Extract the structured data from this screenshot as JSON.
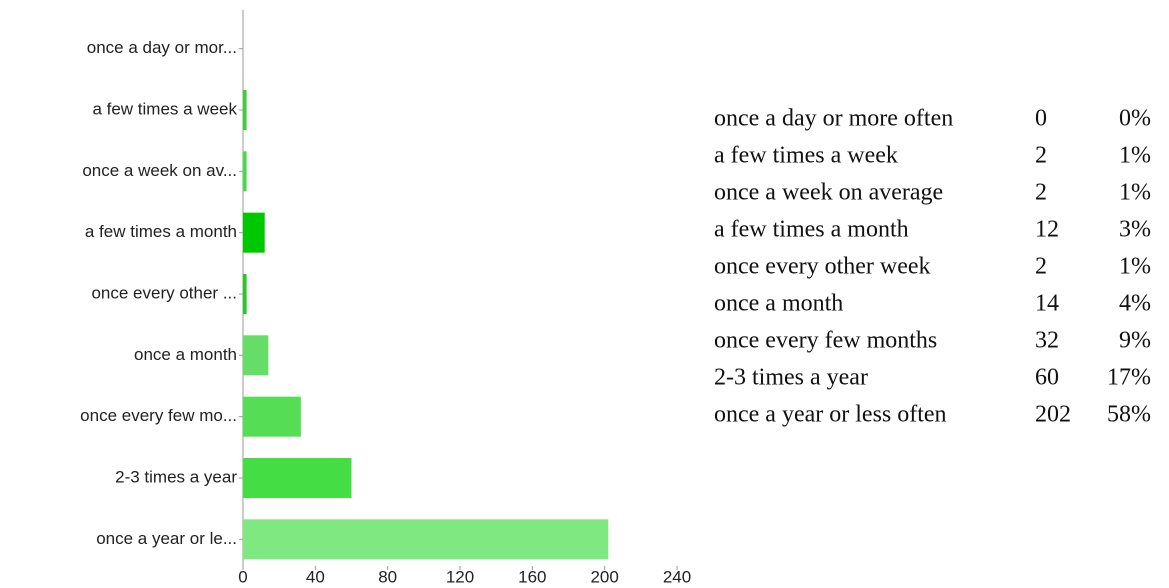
{
  "chart_data": {
    "type": "bar",
    "orientation": "horizontal",
    "categories": [
      "once a day or mor...",
      "a few times a week",
      "once a week on av...",
      "a few times a month",
      "once every other ...",
      "once a month",
      "once every few mo...",
      "2-3 times a year",
      "once a year or le..."
    ],
    "values": [
      0,
      2,
      2,
      12,
      2,
      14,
      32,
      60,
      202
    ],
    "colors": [
      "#44dd44",
      "#3ccf3c",
      "#44dd44",
      "#00c800",
      "#22cc22",
      "#66dd66",
      "#55dd55",
      "#44dd44",
      "#80e880"
    ],
    "xlim": [
      0,
      240
    ],
    "xticks": [
      0,
      40,
      80,
      120,
      160,
      200,
      240
    ]
  },
  "table": {
    "rows": [
      {
        "name": "once a day or more often",
        "percent": "0%"
      },
      {
        "name": "a few times a week",
        "percent": "1%"
      },
      {
        "name": "once a week on average",
        "percent": "1%"
      },
      {
        "name": "a few times a month",
        "percent": "3%"
      },
      {
        "name": "once every other week",
        "percent": "1%"
      },
      {
        "name": "once a month",
        "percent": "4%"
      },
      {
        "name": "once every few months",
        "percent": "9%"
      },
      {
        "name": "2-3 times a year",
        "percent": "17%"
      },
      {
        "name": "once a year or less often",
        "percent": "58%"
      }
    ]
  }
}
